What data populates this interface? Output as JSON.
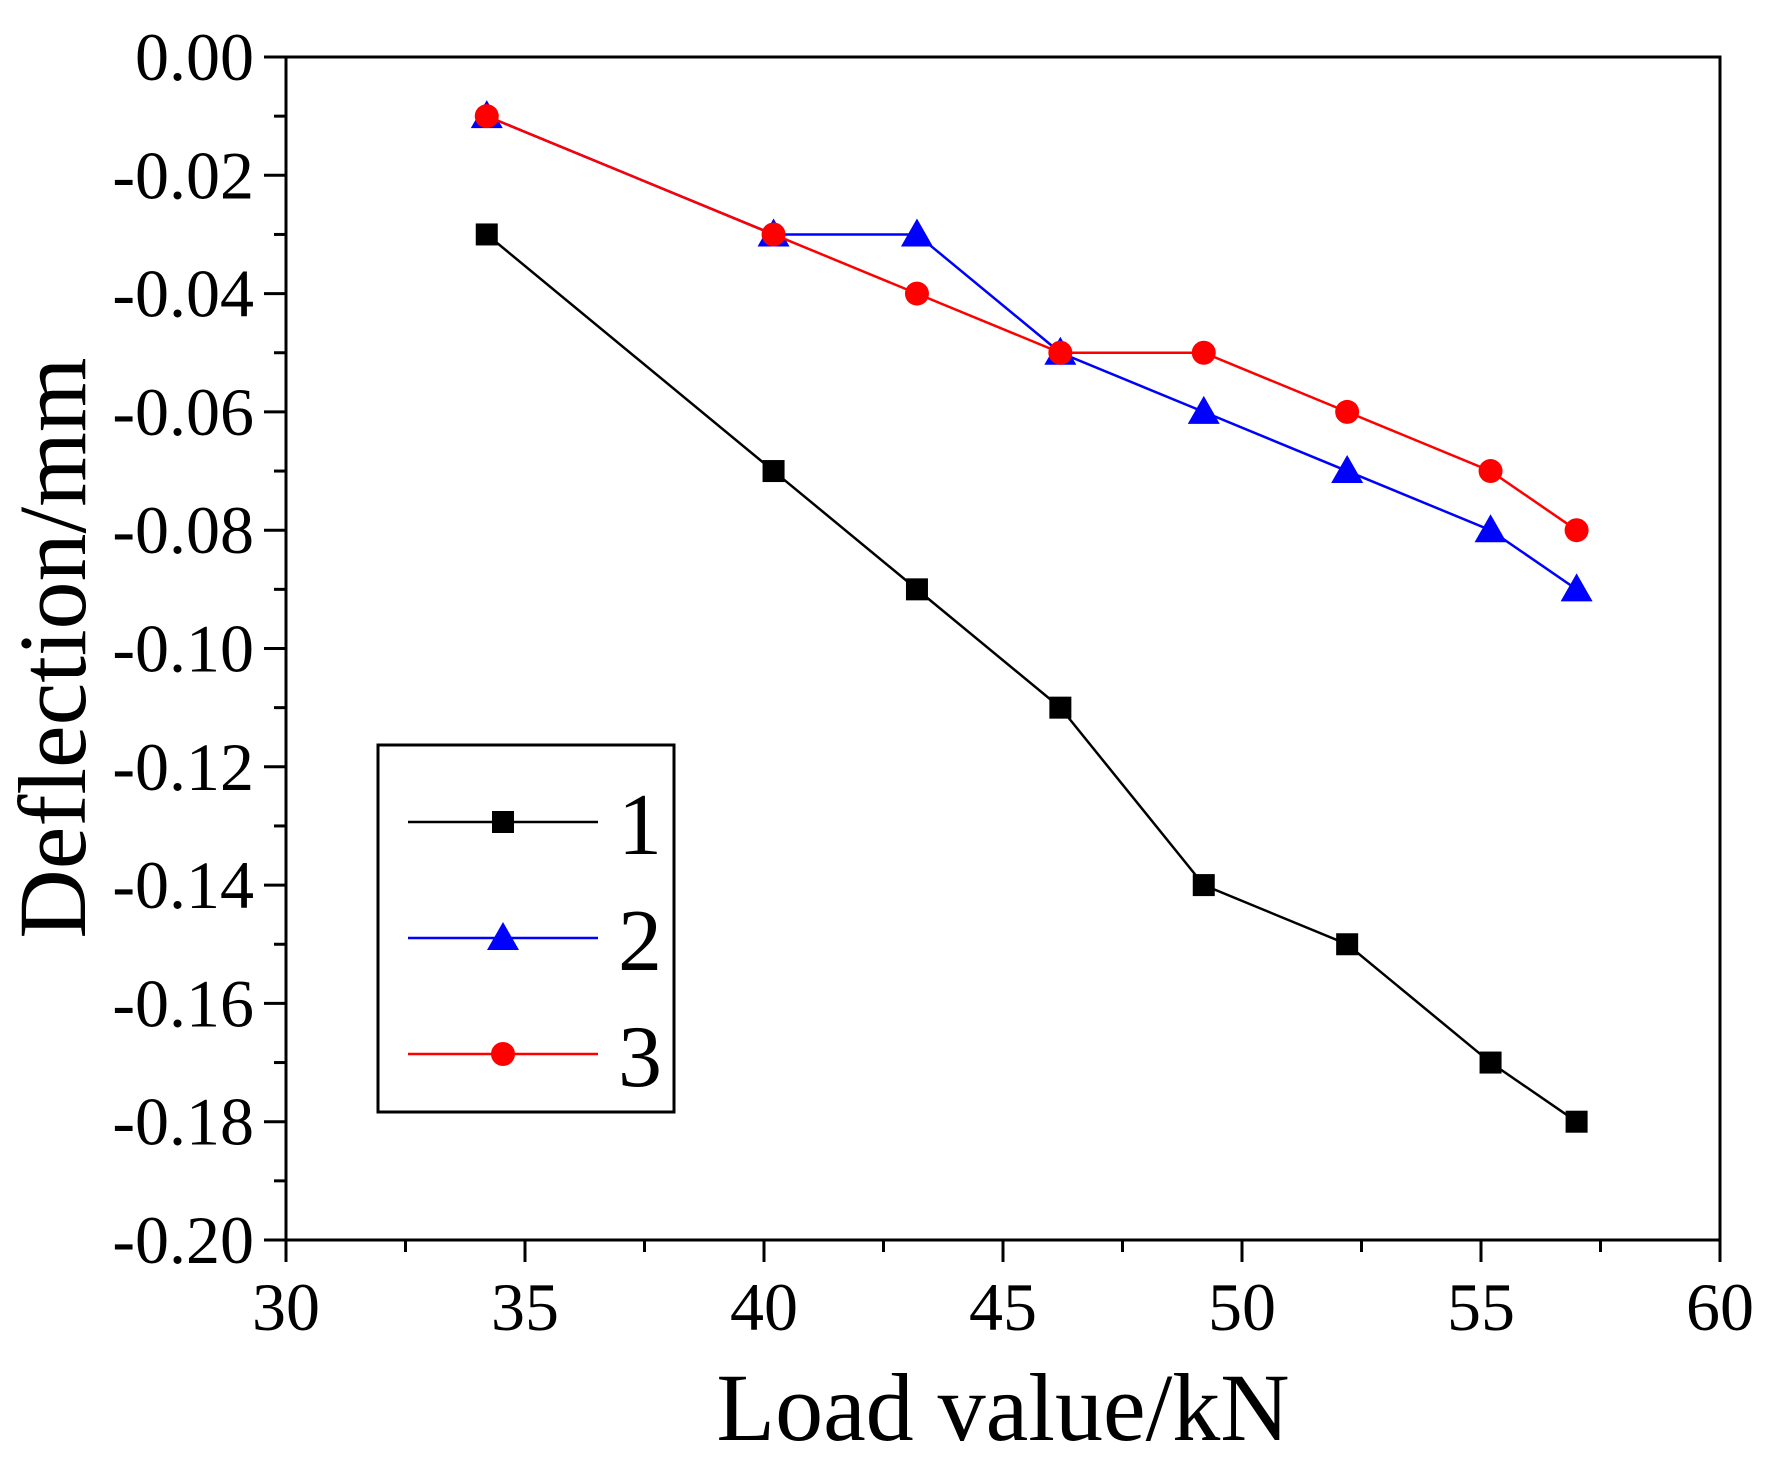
{
  "chart_data": {
    "type": "line",
    "title": "",
    "xlabel": "Load value/kN",
    "ylabel": "Deflection/mm",
    "xlim": [
      30,
      60
    ],
    "ylim": [
      -0.2,
      0.0
    ],
    "x_ticks": [
      "30",
      "35",
      "40",
      "45",
      "50",
      "55",
      "60"
    ],
    "y_ticks": [
      "0.00",
      "-0.02",
      "-0.04",
      "-0.06",
      "-0.08",
      "-0.10",
      "-0.12",
      "-0.14",
      "-0.16",
      "-0.18",
      "-0.20"
    ],
    "grid": false,
    "legend_position": "lower-left",
    "series": [
      {
        "name": "1",
        "color": "#000000",
        "marker": "square",
        "x": [
          34.2,
          40.2,
          43.2,
          46.2,
          49.2,
          52.2,
          55.2,
          57.0
        ],
        "y": [
          -0.03,
          -0.07,
          -0.09,
          -0.11,
          -0.14,
          -0.15,
          -0.17,
          -0.18
        ]
      },
      {
        "name": "2",
        "color": "#0000ff",
        "marker": "triangle",
        "x": [
          34.2,
          40.2,
          43.2,
          46.2,
          49.2,
          52.2,
          55.2,
          57.0
        ],
        "y": [
          -0.01,
          -0.03,
          -0.03,
          -0.05,
          -0.06,
          -0.07,
          -0.08,
          -0.09
        ]
      },
      {
        "name": "3",
        "color": "#ff0000",
        "marker": "circle",
        "x": [
          34.2,
          40.2,
          43.2,
          46.2,
          49.2,
          52.2,
          55.2,
          57.0
        ],
        "y": [
          -0.01,
          -0.03,
          -0.04,
          -0.05,
          -0.05,
          -0.06,
          -0.07,
          -0.08
        ]
      }
    ]
  }
}
